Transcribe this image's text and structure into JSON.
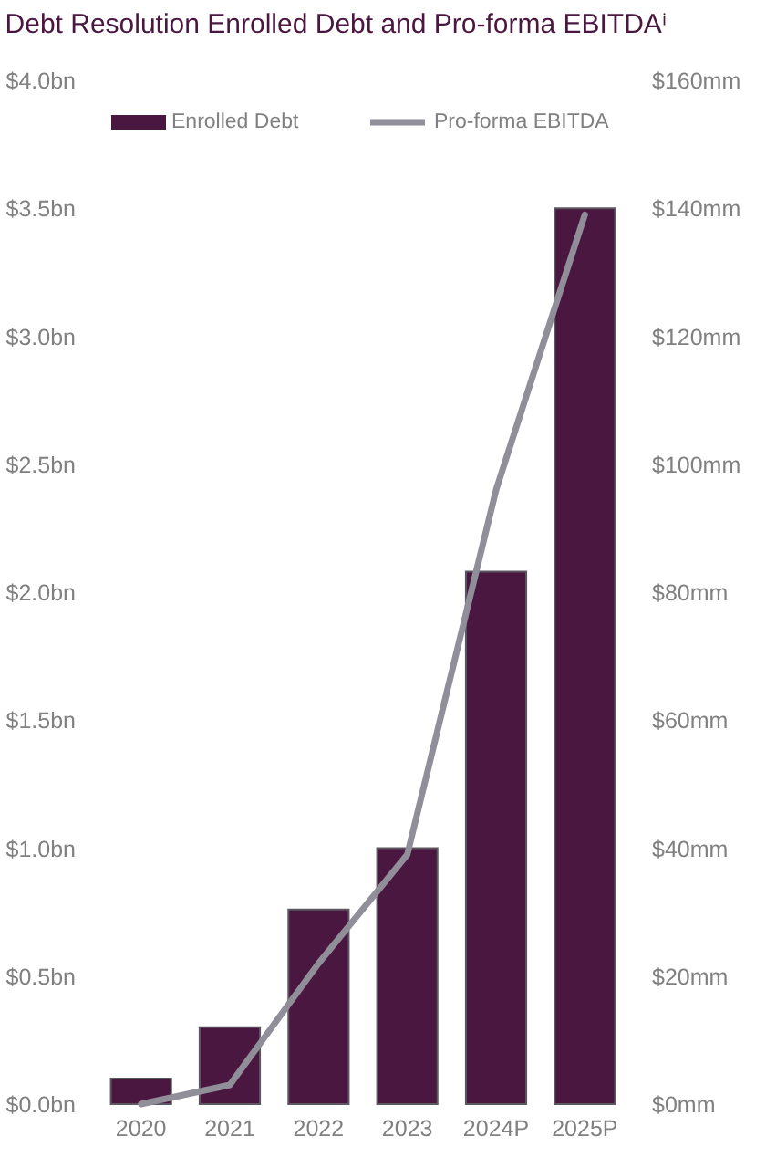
{
  "chart_data": {
    "type": "bar",
    "title": "Debt Resolution Enrolled Debt and Pro-forma EBITDAⁱ",
    "categories": [
      "2020",
      "2021",
      "2022",
      "2023",
      "2024P",
      "2025P"
    ],
    "series": [
      {
        "name": "Enrolled Debt",
        "color": "#4a1740",
        "values": [
          0.1,
          0.3,
          0.76,
          1.0,
          2.08,
          3.5
        ]
      },
      {
        "name": "Pro-forma EBITDA",
        "type": "line",
        "axis": "y2",
        "color": "#908e99",
        "values": [
          0,
          3,
          22,
          39,
          96,
          139
        ]
      }
    ],
    "ylim": [
      0,
      4.0
    ],
    "yticks": [
      {
        "value": 0,
        "label": "$0.0bn"
      },
      {
        "value": 0.5,
        "label": "$0.5bn"
      },
      {
        "value": 1.0,
        "label": "$1.0bn"
      },
      {
        "value": 1.5,
        "label": "$1.5bn"
      },
      {
        "value": 2.0,
        "label": "$2.0bn"
      },
      {
        "value": 2.5,
        "label": "$2.5bn"
      },
      {
        "value": 3.0,
        "label": "$3.0bn"
      },
      {
        "value": 3.5,
        "label": "$3.5bn"
      },
      {
        "value": 4.0,
        "label": "$4.0bn"
      }
    ],
    "y2lim": [
      0,
      160
    ],
    "y2ticks": [
      {
        "value": 0,
        "label": "$0mm"
      },
      {
        "value": 20,
        "label": "$20mm"
      },
      {
        "value": 40,
        "label": "$40mm"
      },
      {
        "value": 60,
        "label": "$60mm"
      },
      {
        "value": 80,
        "label": "$80mm"
      },
      {
        "value": 100,
        "label": "$100mm"
      },
      {
        "value": 120,
        "label": "$120mm"
      },
      {
        "value": 140,
        "label": "$140mm"
      },
      {
        "value": 160,
        "label": "$160mm"
      }
    ],
    "legend": "top"
  }
}
